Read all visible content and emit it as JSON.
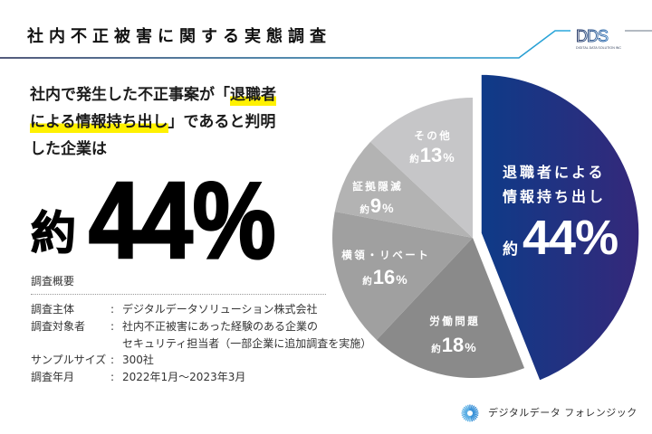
{
  "header": {
    "title": "社内不正被害に関する実態調査",
    "logo": {
      "mark": "DDS",
      "tagline": "DIGITAL DATA SOLUTION INC"
    }
  },
  "headline": {
    "lines": [
      [
        {
          "text": "社内で発生した不正事案が「",
          "highlight": false
        },
        {
          "text": "退職者",
          "highlight": true
        }
      ],
      [
        {
          "text": "による情報持ち出し",
          "highlight": true
        },
        {
          "text": "」であると判明",
          "highlight": false
        }
      ],
      [
        {
          "text": "した企業は",
          "highlight": false
        }
      ]
    ]
  },
  "stat": {
    "prefix": "約",
    "value": "44",
    "unit": "%"
  },
  "survey": {
    "heading": "調査概要",
    "separator": ":",
    "rows": [
      {
        "label": "調査主体",
        "value_lines": [
          "デジタルデータソリューション株式会社"
        ]
      },
      {
        "label": "調査対象者",
        "value_lines": [
          "社内不正被害にあった経験のある企業の",
          "セキュリティ担当者（一部企業に追加調査を実施）"
        ]
      },
      {
        "label": "サンプルサイズ",
        "value_lines": [
          "300社"
        ]
      },
      {
        "label": "調査年月",
        "value_lines": [
          "2022年1月〜2023年3月"
        ]
      }
    ]
  },
  "chart_data": {
    "type": "pie",
    "title": "",
    "value_prefix": "約",
    "unit": "%",
    "start": "12 o'clock",
    "direction": "clockwise",
    "slices": [
      {
        "label": "退職者による情報持ち出し",
        "value": 44,
        "color": "#1a3a86",
        "gradient": [
          "#0e3b88",
          "#35287a"
        ],
        "highlight": true
      },
      {
        "label": "労働問題",
        "value": 18,
        "color": "#8a8a8a"
      },
      {
        "label": "横領・リベート",
        "value": 16,
        "color": "#a0a0a0"
      },
      {
        "label": "証拠隠滅",
        "value": 9,
        "color": "#b3b3b3"
      },
      {
        "label": "その他",
        "value": 13,
        "color": "#c6c6c8"
      }
    ]
  },
  "footer": {
    "brand": "デジタルデータ フォレンジック"
  },
  "colors": {
    "header_line_start": "#1b2450",
    "header_line_mid": "#1a6f9f",
    "header_line_end": "#2aa9de",
    "logo_line": "#9aa3ad",
    "highlight": "#fff100",
    "logo_d1": "#1d2f5e",
    "logo_d2": "#2f73b8",
    "footer_icon_start": "#1f78cc",
    "footer_icon_end": "#76c8f0"
  }
}
